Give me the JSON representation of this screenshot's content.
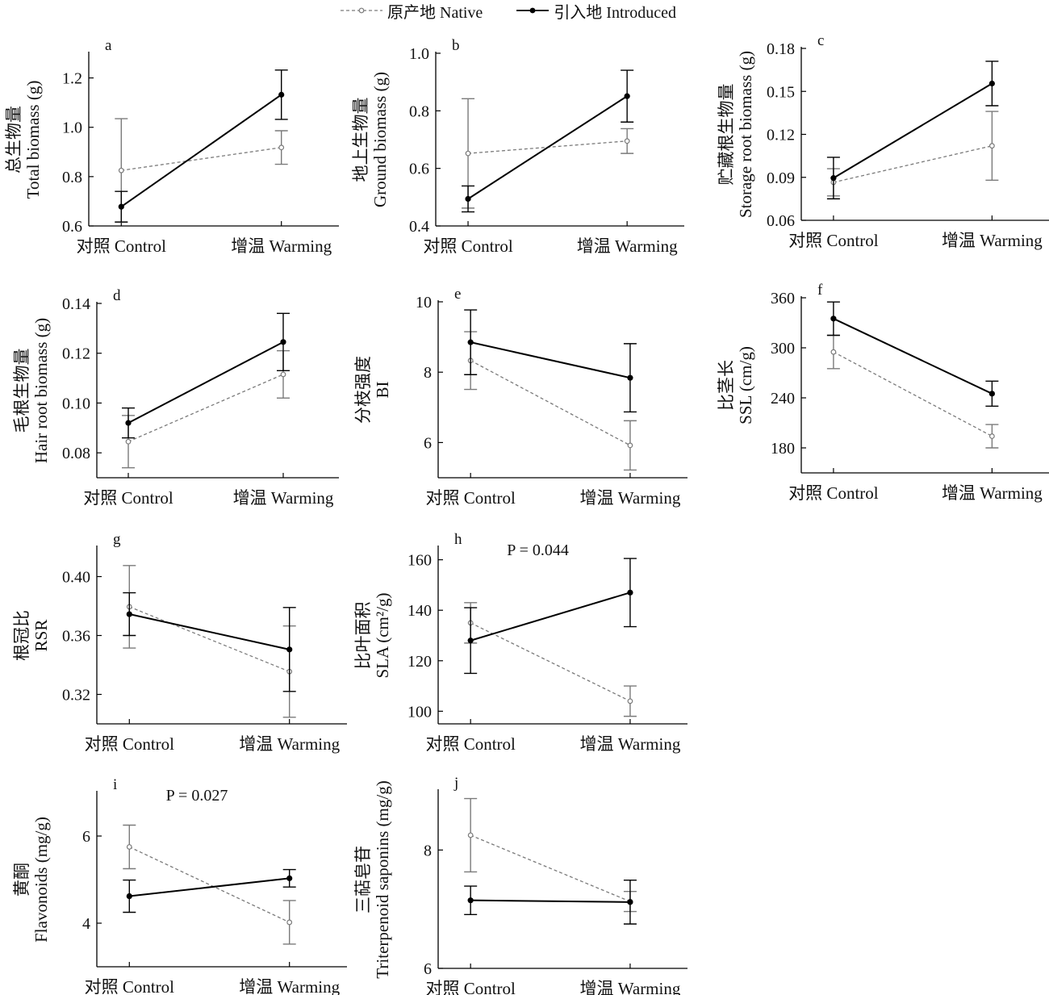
{
  "legend": {
    "native": "原产地 Native",
    "introduced": "引入地 Introduced"
  },
  "colors": {
    "native": "#7a7a7a",
    "introduced": "#000000"
  },
  "chart_data": [
    {
      "panel": "a",
      "type": "line",
      "categories": [
        "对照 Control",
        "增温 Warming"
      ],
      "ylabel_cn": "总生物量",
      "ylabel_en": "Total biomass (g)",
      "ylim": [
        0.6,
        1.3
      ],
      "yticks": [
        0.6,
        0.8,
        1.0,
        1.2
      ],
      "decimals": 1,
      "annotation": "",
      "series": [
        {
          "name": "原产地 Native",
          "values": [
            0.825,
            0.918
          ],
          "errors": [
            0.21,
            0.068
          ]
        },
        {
          "name": "引入地 Introduced",
          "values": [
            0.678,
            1.132
          ],
          "errors": [
            0.062,
            0.1
          ]
        }
      ]
    },
    {
      "panel": "b",
      "type": "line",
      "categories": [
        "对照 Control",
        "增温 Warming"
      ],
      "ylabel_cn": "地上生物量",
      "ylabel_en": "Ground biomass (g)",
      "ylim": [
        0.4,
        1.0
      ],
      "yticks": [
        0.4,
        0.6,
        0.8,
        1.0
      ],
      "decimals": 1,
      "annotation": "",
      "series": [
        {
          "name": "原产地 Native",
          "values": [
            0.652,
            0.695
          ],
          "errors": [
            0.19,
            0.043
          ]
        },
        {
          "name": "引入地 Introduced",
          "values": [
            0.494,
            0.851
          ],
          "errors": [
            0.045,
            0.09
          ]
        }
      ]
    },
    {
      "panel": "c",
      "type": "line",
      "categories": [
        "对照 Control",
        "增温 Warming"
      ],
      "ylabel_cn": "贮藏根生物量",
      "ylabel_en": "Storage root biomass (g)",
      "ylim": [
        0.06,
        0.18
      ],
      "yticks": [
        0.06,
        0.09,
        0.12,
        0.15,
        0.18
      ],
      "decimals": 2,
      "annotation": "",
      "series": [
        {
          "name": "原产地 Native",
          "values": [
            0.0865,
            0.112
          ],
          "errors": [
            0.0095,
            0.024
          ]
        },
        {
          "name": "引入地 Introduced",
          "values": [
            0.0895,
            0.1555
          ],
          "errors": [
            0.0145,
            0.0155
          ]
        }
      ]
    },
    {
      "panel": "d",
      "type": "line",
      "categories": [
        "对照 Control",
        "增温 Warming"
      ],
      "ylabel_cn": "毛根生物量",
      "ylabel_en": "Hair root biomass (g)",
      "ylim": [
        0.07,
        0.14
      ],
      "yticks": [
        0.08,
        0.1,
        0.12,
        0.14
      ],
      "decimals": 2,
      "annotation": "",
      "series": [
        {
          "name": "原产地 Native",
          "values": [
            0.0845,
            0.1115
          ],
          "errors": [
            0.0105,
            0.0095
          ]
        },
        {
          "name": "引入地 Introduced",
          "values": [
            0.092,
            0.1245
          ],
          "errors": [
            0.006,
            0.0115
          ]
        }
      ]
    },
    {
      "panel": "e",
      "type": "line",
      "categories": [
        "对照 Control",
        "增温 Warming"
      ],
      "ylabel_cn": "分枝强度",
      "ylabel_en": "BI",
      "ylim": [
        5.0,
        10.0
      ],
      "yticks": [
        6,
        8,
        10
      ],
      "decimals": 0,
      "annotation": "",
      "series": [
        {
          "name": "原产地 Native",
          "values": [
            8.33,
            5.92
          ],
          "errors": [
            0.82,
            0.7
          ]
        },
        {
          "name": "引入地 Introduced",
          "values": [
            8.85,
            7.84
          ],
          "errors": [
            0.92,
            0.97
          ]
        }
      ]
    },
    {
      "panel": "f",
      "type": "line",
      "categories": [
        "对照 Control",
        "增温 Warming"
      ],
      "ylabel_cn": "比茎长",
      "ylabel_en": "SSL (cm/g)",
      "ylim": [
        150,
        360
      ],
      "yticks": [
        180,
        240,
        300,
        360
      ],
      "decimals": 0,
      "annotation": "",
      "series": [
        {
          "name": "原产地 Native",
          "values": [
            295,
            194
          ],
          "errors": [
            20,
            14
          ]
        },
        {
          "name": "引入地 Introduced",
          "values": [
            335,
            245
          ],
          "errors": [
            20,
            15
          ]
        }
      ]
    },
    {
      "panel": "g",
      "type": "line",
      "categories": [
        "对照 Control",
        "增温 Warming"
      ],
      "ylabel_cn": "根冠比",
      "ylabel_en": "RSR",
      "ylim": [
        0.3,
        0.42
      ],
      "yticks": [
        0.32,
        0.36,
        0.4
      ],
      "decimals": 2,
      "annotation": "",
      "series": [
        {
          "name": "原产地 Native",
          "values": [
            0.3795,
            0.3355
          ],
          "errors": [
            0.028,
            0.031
          ]
        },
        {
          "name": "引入地 Introduced",
          "values": [
            0.3745,
            0.3505
          ],
          "errors": [
            0.0145,
            0.0285
          ]
        }
      ]
    },
    {
      "panel": "h",
      "type": "line",
      "categories": [
        "对照 Control",
        "增温 Warming"
      ],
      "ylabel_cn": "比叶面积",
      "ylabel_en": "SLA (cm²/g)",
      "ylim": [
        95,
        165
      ],
      "yticks": [
        100,
        120,
        140,
        160
      ],
      "decimals": 0,
      "annotation": "P = 0.044",
      "series": [
        {
          "name": "原产地 Native",
          "values": [
            135,
            104
          ],
          "errors": [
            8,
            6
          ]
        },
        {
          "name": "引入地 Introduced",
          "values": [
            128,
            147
          ],
          "errors": [
            13,
            13.5
          ]
        }
      ]
    },
    {
      "panel": "i",
      "type": "line",
      "categories": [
        "对照 Control",
        "增温 Warming"
      ],
      "ylabel_cn": "黄酮",
      "ylabel_en": "Flavonoids (mg/g)",
      "ylim": [
        3.0,
        7.0
      ],
      "yticks": [
        4,
        6
      ],
      "decimals": 0,
      "annotation": "P = 0.027",
      "series": [
        {
          "name": "原产地 Native",
          "values": [
            5.75,
            4.02
          ],
          "errors": [
            0.5,
            0.5
          ]
        },
        {
          "name": "引入地 Introduced",
          "values": [
            4.62,
            5.03
          ],
          "errors": [
            0.37,
            0.2
          ]
        }
      ]
    },
    {
      "panel": "j",
      "type": "line",
      "categories": [
        "对照 Control",
        "增温 Warming"
      ],
      "ylabel_cn": "三萜皂苷",
      "ylabel_en": "Triterpenoid saponins (mg/g)",
      "ylim": [
        6.0,
        9.0
      ],
      "yticks": [
        6,
        8
      ],
      "decimals": 0,
      "annotation": "",
      "series": [
        {
          "name": "原产地 Native",
          "values": [
            8.25,
            7.13
          ],
          "errors": [
            0.62,
            0.17
          ]
        },
        {
          "name": "引入地 Introduced",
          "values": [
            7.15,
            7.12
          ],
          "errors": [
            0.24,
            0.37
          ]
        }
      ]
    }
  ]
}
